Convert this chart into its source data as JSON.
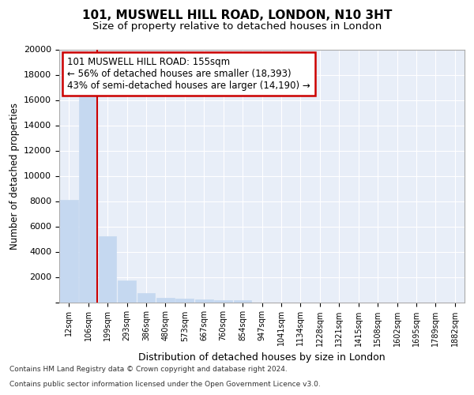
{
  "title_line1": "101, MUSWELL HILL ROAD, LONDON, N10 3HT",
  "title_line2": "Size of property relative to detached houses in London",
  "xlabel": "Distribution of detached houses by size in London",
  "ylabel": "Number of detached properties",
  "bar_labels": [
    "12sqm",
    "106sqm",
    "199sqm",
    "293sqm",
    "386sqm",
    "480sqm",
    "573sqm",
    "667sqm",
    "760sqm",
    "854sqm",
    "947sqm",
    "1041sqm",
    "1134sqm",
    "1228sqm",
    "1321sqm",
    "1415sqm",
    "1508sqm",
    "1602sqm",
    "1695sqm",
    "1789sqm",
    "1882sqm"
  ],
  "bar_values": [
    8100,
    16500,
    5200,
    1750,
    700,
    350,
    270,
    210,
    160,
    130,
    0,
    0,
    0,
    0,
    0,
    0,
    0,
    0,
    0,
    0,
    0
  ],
  "bar_color": "#c5d8f0",
  "bar_edgecolor": "#c5d8f0",
  "vline_color": "#cc0000",
  "vline_pos": 1.48,
  "annotation_title": "101 MUSWELL HILL ROAD: 155sqm",
  "annotation_line1": "← 56% of detached houses are smaller (18,393)",
  "annotation_line2": "43% of semi-detached houses are larger (14,190) →",
  "annotation_box_facecolor": "#ffffff",
  "annotation_box_edgecolor": "#cc0000",
  "ylim": [
    0,
    20000
  ],
  "yticks": [
    0,
    2000,
    4000,
    6000,
    8000,
    10000,
    12000,
    14000,
    16000,
    18000,
    20000
  ],
  "plot_bg_color": "#e8eef8",
  "fig_bg_color": "#ffffff",
  "grid_color": "#ffffff",
  "footer_line1": "Contains HM Land Registry data © Crown copyright and database right 2024.",
  "footer_line2": "Contains public sector information licensed under the Open Government Licence v3.0."
}
